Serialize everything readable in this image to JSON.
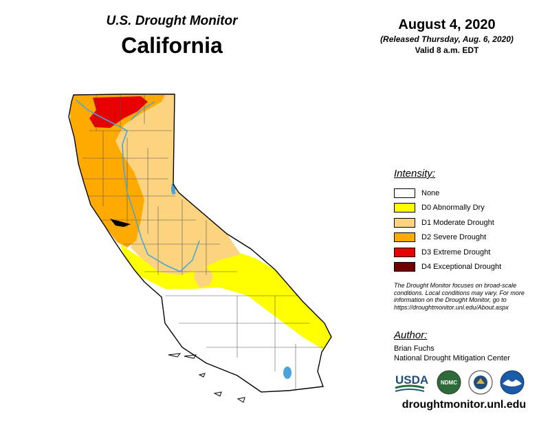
{
  "header": {
    "subtitle": "U.S. Drought Monitor",
    "region": "California",
    "date": "August 4, 2020",
    "released": "(Released Thursday, Aug. 6, 2020)",
    "valid": "Valid 8 a.m. EDT"
  },
  "legend": {
    "title": "Intensity:",
    "items": [
      {
        "label": "None",
        "color": "#ffffff"
      },
      {
        "label": "D0 Abnormally Dry",
        "color": "#ffff00"
      },
      {
        "label": "D1 Moderate Drought",
        "color": "#fcd37f"
      },
      {
        "label": "D2 Severe Drought",
        "color": "#ffaa00"
      },
      {
        "label": "D3 Extreme Drought",
        "color": "#e60000"
      },
      {
        "label": "D4 Exceptional Drought",
        "color": "#730000"
      }
    ]
  },
  "note": "The Drought Monitor focuses on broad-scale conditions. Local conditions may vary. For more information on the Drought Monitor, go to https://droughtmonitor.unl.edu/About.aspx",
  "author": {
    "title": "Author:",
    "name": "Brian Fuchs",
    "org": "National Drought Mitigation Center"
  },
  "logos": {
    "usda": "USDA",
    "ndmc": "NDMC"
  },
  "website": "droughtmonitor.unl.edu",
  "colors": {
    "water": "#4ba3d9",
    "outline": "#000000"
  }
}
